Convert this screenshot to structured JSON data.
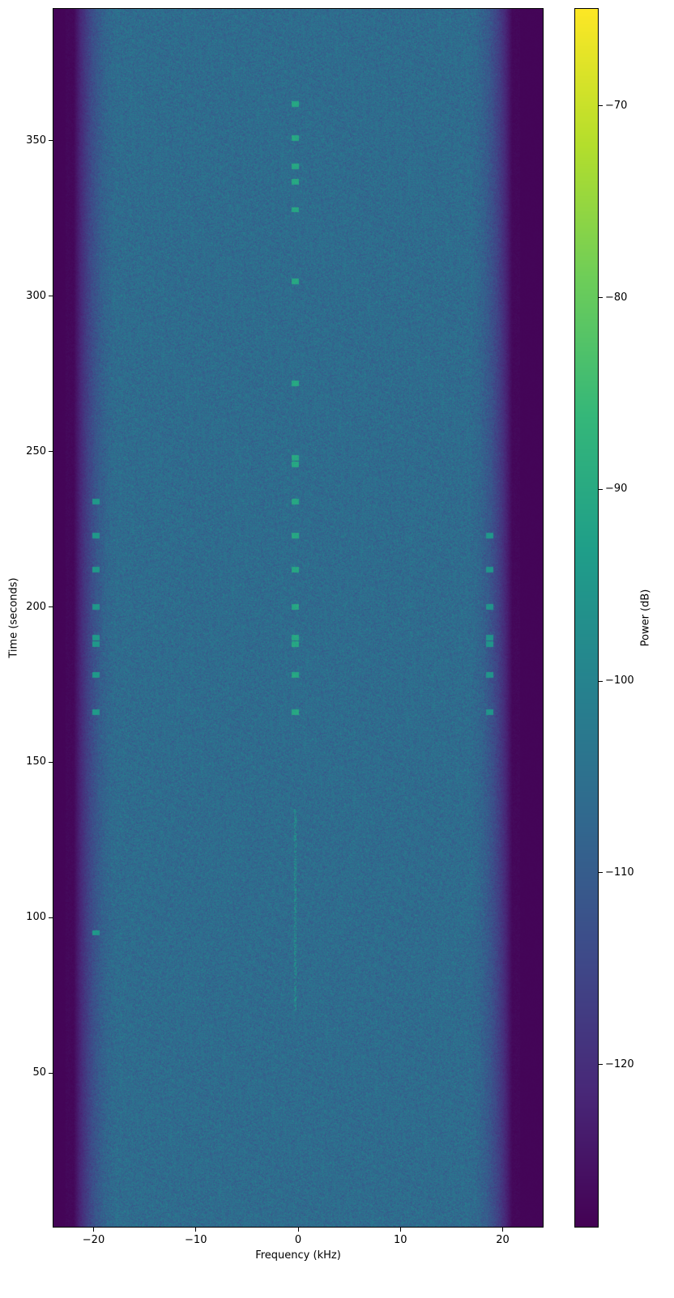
{
  "chart_data": {
    "type": "heatmap",
    "title": "",
    "xlabel": "Frequency (kHz)",
    "ylabel": "Time (seconds)",
    "xlim": [
      -24,
      24
    ],
    "ylim": [
      0.3,
      392.7
    ],
    "xticks": [
      -20,
      -10,
      0,
      10,
      20
    ],
    "xtick_labels": [
      "−20",
      "−10",
      "0",
      "10",
      "20"
    ],
    "yticks": [
      50,
      100,
      150,
      200,
      250,
      300,
      350
    ],
    "ytick_labels": [
      "50",
      "100",
      "150",
      "200",
      "250",
      "300",
      "350"
    ],
    "grid": false,
    "colormap": "viridis",
    "colorbar": {
      "label": "Power (dB)",
      "range": [
        -128.5,
        -64.9
      ],
      "ticks": [
        -70,
        -80,
        -90,
        -100,
        -110,
        -120
      ],
      "tick_labels": [
        "−70",
        "−80",
        "−90",
        "−100",
        "−110",
        "−120"
      ]
    },
    "noise_floor_db": -106,
    "passband_khz": [
      -18,
      18
    ],
    "stopband_level_db": -128,
    "tones": [
      {
        "freq_khz": -0.3,
        "times_s": [
          362,
          351,
          342,
          337,
          328,
          305,
          272,
          248,
          246,
          234,
          223,
          212,
          200,
          190,
          188,
          178,
          166
        ],
        "level_db": -92
      },
      {
        "freq_khz": -0.3,
        "continuous_s": [
          70,
          135
        ],
        "level_db": -98
      },
      {
        "freq_khz": -19.8,
        "times_s": [
          234,
          223,
          212,
          200,
          190,
          188,
          178,
          166,
          95
        ],
        "level_db": -96
      },
      {
        "freq_khz": 18.8,
        "times_s": [
          223,
          212,
          200,
          190,
          188,
          178,
          166
        ],
        "level_db": -97
      }
    ]
  }
}
